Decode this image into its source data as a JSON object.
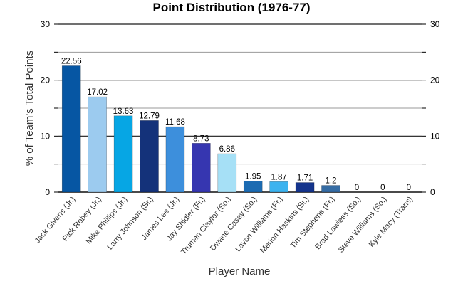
{
  "chart_data": {
    "type": "bar",
    "title": "Point Distribution (1976-77)",
    "xlabel": "Player Name",
    "ylabel": "% of Team's Total Points",
    "ylim": [
      0,
      30
    ],
    "y_ticks": [
      0,
      10,
      20,
      30
    ],
    "grid": true,
    "right_axis": true,
    "categories": [
      "Jack Givens (Jr.)",
      "Rick Robey (Jr.)",
      "Mike Phillips (Jr.)",
      "Larry Johnson (Sr.)",
      "James Lee (Jr.)",
      "Jay Shidler (Fr.)",
      "Truman Claytor (So.)",
      "Dwane Casey (So.)",
      "Lavon Williams (Fr.)",
      "Merion Haskins (Sr.)",
      "Tim Stephens (Fr.)",
      "Brad Lawless (So.)",
      "Steve Williams (So.)",
      "Kyle Macy (Trans)"
    ],
    "values": [
      22.56,
      17.02,
      13.63,
      12.79,
      11.68,
      8.73,
      6.86,
      1.95,
      1.87,
      1.71,
      1.2,
      0,
      0,
      0
    ],
    "value_labels": [
      "22.56",
      "17.02",
      "13.63",
      "12.79",
      "11.68",
      "8.73",
      "6.86",
      "1.95",
      "1.87",
      "1.71",
      "1.2",
      "0",
      "0",
      "0"
    ],
    "colors": [
      "#0656a3",
      "#9ccbef",
      "#06a6e4",
      "#14327a",
      "#3d8fdc",
      "#3636b0",
      "#a6e0f6",
      "#1c6bb2",
      "#3cb3ef",
      "#14348c",
      "#356ca4",
      "#2a5aa8",
      "#2a5aa8",
      "#2a5aa8"
    ]
  }
}
